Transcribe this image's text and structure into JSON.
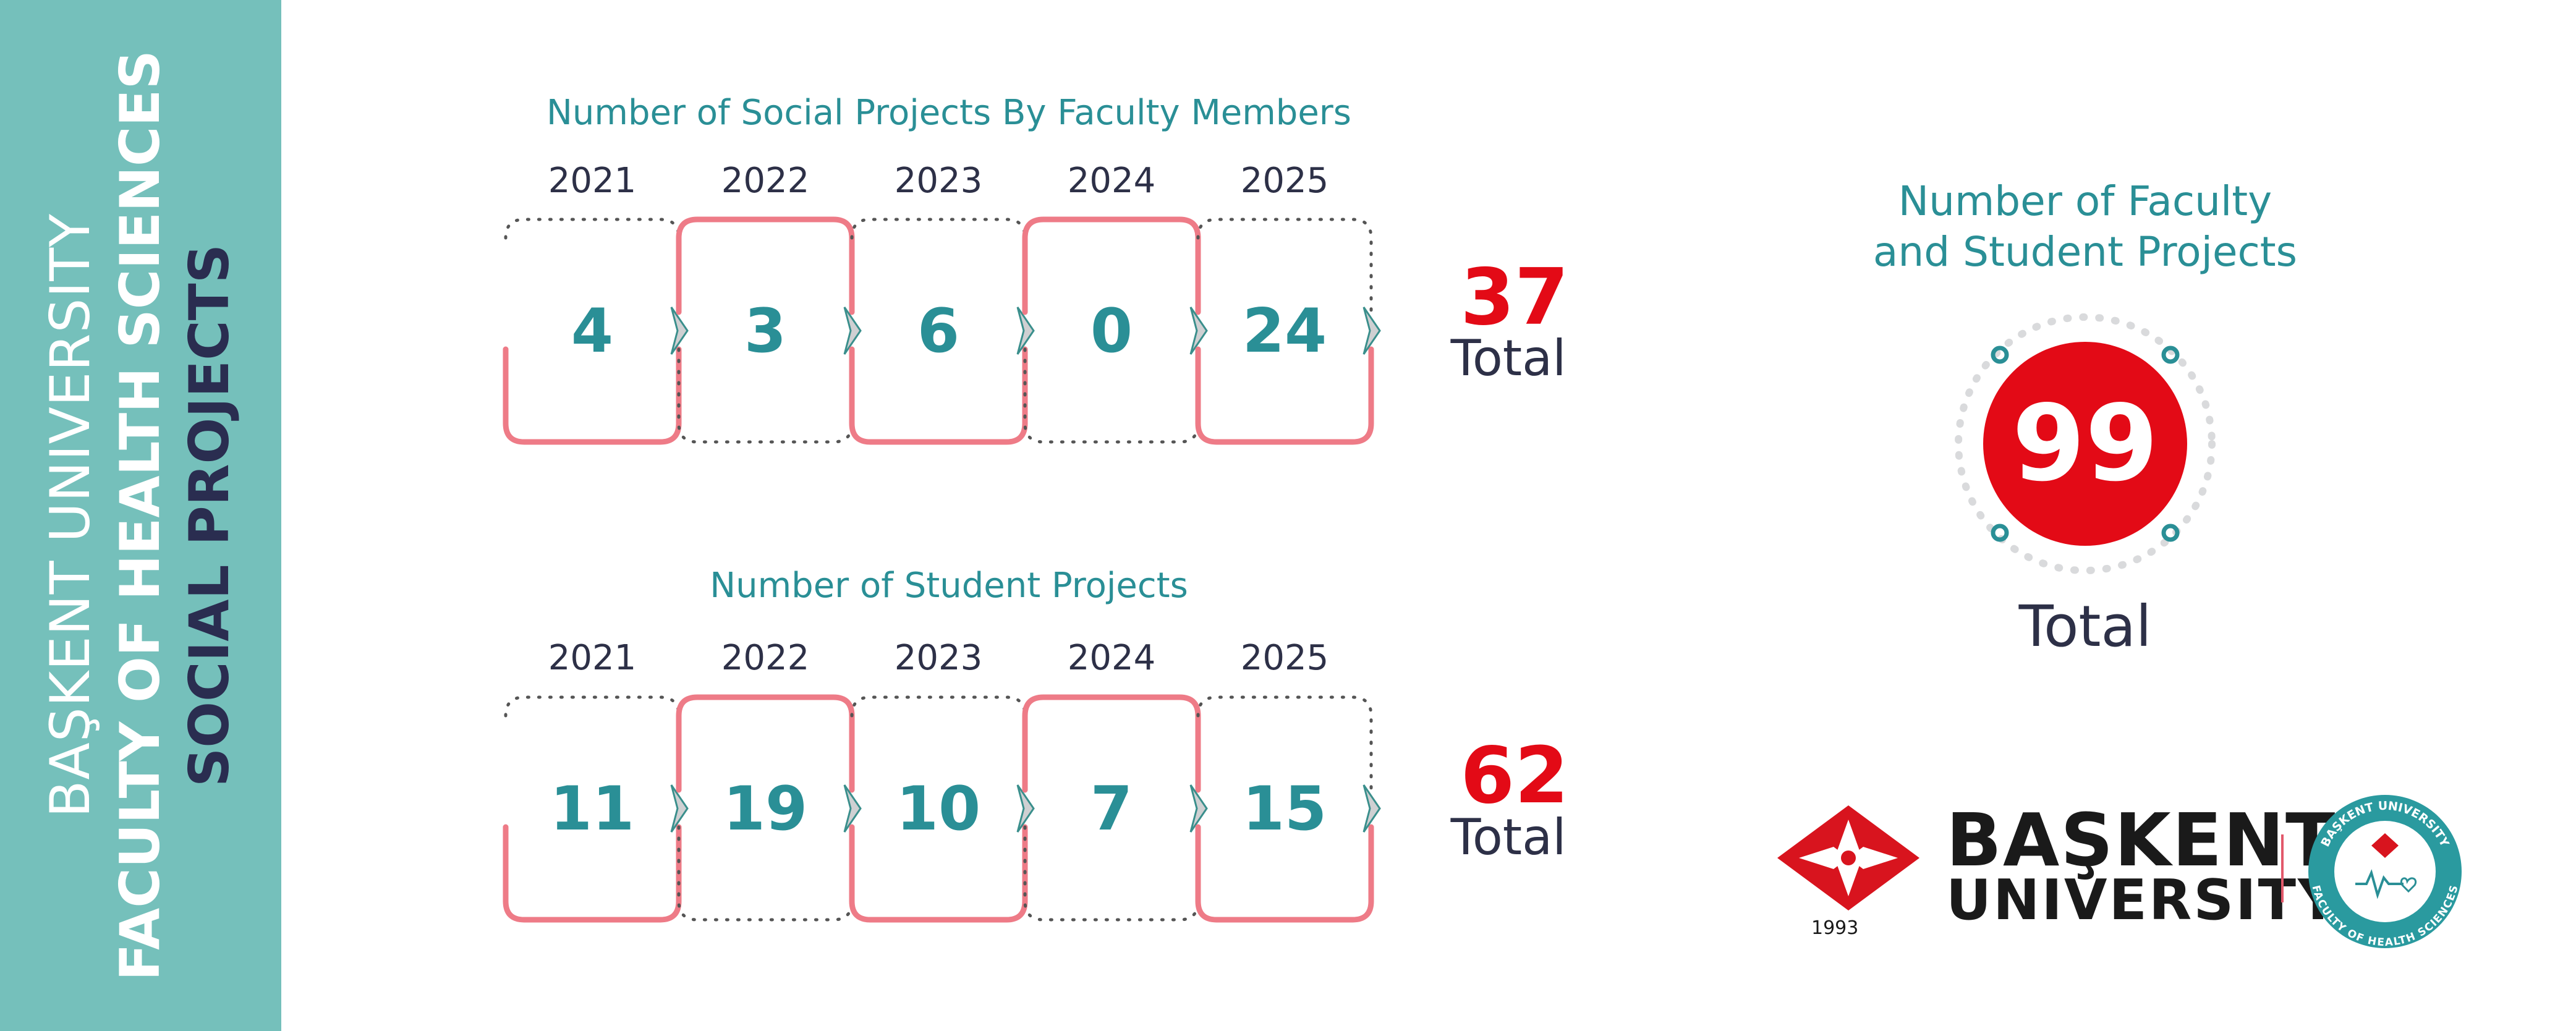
{
  "sidebar": {
    "line1": "BAŞKENT UNIVERSITY",
    "line2": "FACULTY OF HEALTH SCIENCES",
    "line3": "SOCIAL PROJECTS"
  },
  "faculty": {
    "title": "Number of Social Projects By Faculty Members",
    "years": [
      "2021",
      "2022",
      "2023",
      "2024",
      "2025"
    ],
    "values": [
      "4",
      "3",
      "6",
      "0",
      "24"
    ],
    "total": "37",
    "total_label": "Total"
  },
  "student": {
    "title": "Number of Student Projects",
    "years": [
      "2021",
      "2022",
      "2023",
      "2024",
      "2025"
    ],
    "values": [
      "11",
      "19",
      "10",
      "7",
      "15"
    ],
    "total": "62",
    "total_label": "Total"
  },
  "summary": {
    "title_line1": "Number of Faculty",
    "title_line2": "and Student Projects",
    "total": "99",
    "total_label": "Total"
  },
  "branding": {
    "name": "BAŞKENT",
    "sub": "UNIVERSITY",
    "year": "1993",
    "seal_top": "BAŞKENT UNIVERSITY",
    "seal_bottom": "FACULTY OF HEALTH SCIENCES"
  },
  "colors": {
    "teal": "#2a8f96",
    "sidebar": "#75c0bb",
    "navy": "#2d3047",
    "red": "#e30a16",
    "pink": "#ee7b87"
  }
}
